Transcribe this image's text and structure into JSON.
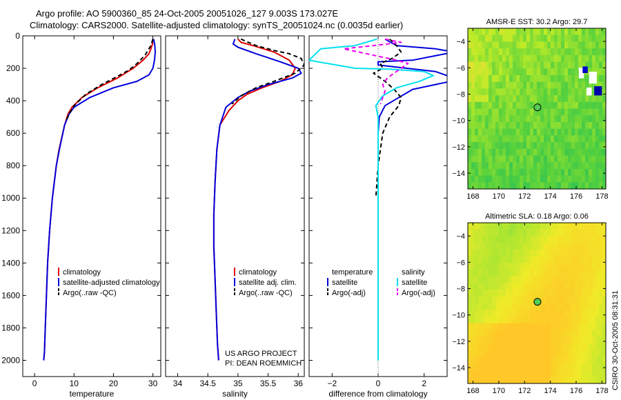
{
  "title_line1": "Argo profile: AO 5900360_85 24-Oct-2005 20051026_127 9.003S 173.027E",
  "title_line2": "Climatology: CARS2000. Satellite-adjusted climatology: synTS_20051024.nc (0.0035d earlier)",
  "side_label": "CSIRO 30-Oct-2005 08:31:31",
  "colors": {
    "clim": "#dd0000",
    "sat": "#0000dd",
    "argo": "#000000",
    "cyan": "#00e0ee",
    "magenta": "#ee00ee"
  },
  "chart_data": [
    {
      "type": "line",
      "name": "temperature-panel",
      "xlabel": "temperature",
      "xlim": [
        -3,
        32
      ],
      "ylim": [
        2100,
        0
      ],
      "xticks": [
        0,
        10,
        20,
        30
      ],
      "yticks": [
        0,
        200,
        400,
        600,
        800,
        1000,
        1200,
        1400,
        1600,
        1800,
        2000
      ],
      "series": [
        {
          "name": "climatology",
          "color": "clim",
          "dash": "solid",
          "x": [
            30.0,
            29.9,
            29.5,
            29.0,
            27.5,
            25.0,
            21.0,
            16.0,
            12.0,
            9.5,
            8.5,
            7.6,
            6.2,
            5.5,
            4.5,
            3.8,
            3.3,
            3.0,
            2.7,
            2.5,
            2.3
          ],
          "y": [
            20,
            50,
            80,
            110,
            150,
            200,
            260,
            320,
            380,
            440,
            480,
            550,
            700,
            800,
            1000,
            1200,
            1400,
            1600,
            1800,
            1950,
            2000
          ]
        },
        {
          "name": "satellite-adjusted climatology",
          "color": "sat",
          "dash": "solid",
          "x": [
            30.2,
            30.5,
            30.6,
            30.4,
            30.0,
            29.0,
            26.0,
            20.0,
            14.0,
            10.0,
            8.8,
            7.6,
            6.3,
            5.5,
            4.5,
            3.8,
            3.3,
            3.0,
            2.7,
            2.5,
            2.3
          ],
          "y": [
            20,
            60,
            100,
            150,
            200,
            240,
            280,
            320,
            380,
            440,
            480,
            550,
            700,
            800,
            1000,
            1200,
            1400,
            1600,
            1800,
            1950,
            2000
          ]
        },
        {
          "name": "Argo(..raw -QC)",
          "color": "argo",
          "dash": "dashed",
          "x": [
            30.0,
            29.5,
            28.0,
            26.0,
            24.0,
            21.0,
            17.0,
            13.0,
            10.0,
            8.8,
            8.0
          ],
          "y": [
            20,
            60,
            120,
            170,
            210,
            250,
            300,
            360,
            430,
            480,
            520
          ]
        }
      ],
      "legend": [
        "climatology",
        "satellite-adjusted climatology",
        "Argo(..raw -QC)"
      ]
    },
    {
      "type": "line",
      "name": "salinity-panel",
      "xlabel": "salinity",
      "xlim": [
        33.8,
        36.1
      ],
      "ylim": [
        2100,
        0
      ],
      "xticks": [
        34,
        34.5,
        35,
        35.5,
        36
      ],
      "xticklabels": [
        "34",
        "34.5",
        "35",
        "35.5",
        "36"
      ],
      "annotation_lines": [
        "US ARGO PROJECT",
        "PI: DEAN ROEMMICH"
      ],
      "series": [
        {
          "name": "climatology",
          "color": "clim",
          "dash": "solid",
          "x": [
            35.0,
            35.05,
            35.25,
            35.6,
            35.85,
            35.95,
            35.9,
            35.7,
            35.4,
            35.15,
            35.0,
            34.85,
            34.7,
            34.65,
            34.62,
            34.6,
            34.6,
            34.62,
            34.64,
            34.66,
            34.68
          ],
          "y": [
            20,
            40,
            60,
            100,
            150,
            200,
            240,
            280,
            320,
            360,
            400,
            460,
            550,
            700,
            900,
            1100,
            1300,
            1500,
            1700,
            1900,
            2000
          ]
        },
        {
          "name": "satellite adj. clim.",
          "color": "sat",
          "dash": "solid",
          "x": [
            34.95,
            34.92,
            35.0,
            35.3,
            35.7,
            36.0,
            36.05,
            35.9,
            35.5,
            35.2,
            35.0,
            34.8,
            34.7,
            34.65,
            34.62,
            34.6,
            34.6,
            34.62,
            34.64,
            34.66,
            34.68
          ],
          "y": [
            20,
            50,
            70,
            110,
            160,
            200,
            230,
            260,
            300,
            340,
            380,
            440,
            550,
            700,
            900,
            1100,
            1300,
            1500,
            1700,
            1900,
            2000
          ]
        },
        {
          "name": "Argo(..raw -QC)",
          "color": "argo",
          "dash": "dashed",
          "x": [
            35.05,
            35.3,
            35.6,
            35.85,
            36.05,
            36.1,
            35.95,
            35.6,
            35.3,
            35.05,
            34.9
          ],
          "y": [
            20,
            60,
            90,
            110,
            140,
            180,
            230,
            280,
            320,
            370,
            420
          ]
        }
      ],
      "legend": [
        "climatology",
        "satellite adj. clim.",
        "Argo(..raw -QC)"
      ]
    },
    {
      "type": "line",
      "name": "difference-panel",
      "xlabel": "difference from climatology",
      "xlim": [
        -3,
        3
      ],
      "ylim": [
        2100,
        0
      ],
      "xticks": [
        -2,
        0,
        2
      ],
      "xticklabels": [
        "−2",
        "0",
        "2"
      ],
      "legend_headers": [
        "temperature",
        "salinity"
      ],
      "series": [
        {
          "name": "temperature satellite",
          "color": "sat",
          "dash": "solid",
          "x": [
            0.3,
            0.8,
            2.5,
            3.3,
            1.5,
            0.0,
            0.0,
            2.5,
            3.5,
            1.5,
            0.3,
            0.05,
            0.0,
            0.0,
            0.0,
            0.0,
            0.0,
            0.0,
            0.0,
            0.0
          ],
          "y": [
            20,
            60,
            80,
            100,
            150,
            160,
            180,
            220,
            270,
            330,
            430,
            500,
            600,
            800,
            1000,
            1200,
            1400,
            1600,
            1800,
            1900
          ]
        },
        {
          "name": "temperature Argo(-adj)",
          "color": "argo",
          "dash": "dashed",
          "x": [
            0.5,
            0.8,
            1.0,
            0.6,
            0.1,
            0.2,
            -0.2,
            0.3,
            0.7,
            1.0,
            0.9,
            0.5,
            0.2,
            0.0,
            -0.1
          ],
          "y": [
            20,
            60,
            100,
            140,
            170,
            200,
            230,
            280,
            330,
            380,
            430,
            500,
            600,
            800,
            1000
          ]
        },
        {
          "name": "salinity satellite",
          "color": "cyan",
          "dash": "solid",
          "x": [
            -0.05,
            -1.0,
            -2.5,
            -3.0,
            -1.0,
            0.5,
            2.0,
            2.4,
            1.8,
            0.8,
            0.2,
            -0.1,
            0.0,
            0.0,
            0.0,
            0.0,
            0.0,
            0.0,
            0.0
          ],
          "y": [
            20,
            60,
            80,
            150,
            200,
            205,
            220,
            245,
            280,
            320,
            370,
            430,
            500,
            700,
            1000,
            1200,
            1500,
            1800,
            2000
          ]
        },
        {
          "name": "salinity Argo(-adj)",
          "color": "magenta",
          "dash": "dashed",
          "x": [
            0.3,
            1.0,
            -0.2,
            -1.5,
            -0.5,
            0.8,
            1.3,
            1.0,
            0.4,
            0.2,
            0.3,
            0.2,
            0.1
          ],
          "y": [
            20,
            40,
            60,
            80,
            110,
            150,
            170,
            200,
            260,
            300,
            340,
            380,
            420
          ]
        }
      ],
      "legend": [
        {
          "label": "satellite",
          "group": "temperature"
        },
        {
          "label": "Argo(-adj)",
          "group": "temperature"
        },
        {
          "label": "satellite",
          "group": "salinity"
        },
        {
          "label": "Argo(-adj)",
          "group": "salinity"
        }
      ]
    },
    {
      "type": "heatmap",
      "name": "amsr-sst-map",
      "title": "AMSR-E SST: 30.2 Argo: 29.7",
      "xlim": [
        167.6,
        178.3
      ],
      "ylim": [
        -15.2,
        -3.0
      ],
      "xticks": [
        168,
        170,
        172,
        174,
        176,
        178
      ],
      "yticks": [
        -4,
        -6,
        -8,
        -10,
        -12,
        -14
      ],
      "argo_position": [
        173.0,
        -9.0
      ],
      "palette": "yellow-green",
      "grid_rows": 24,
      "grid_cols": 40
    },
    {
      "type": "heatmap",
      "name": "altimetric-sla-map",
      "title": "Altimetric SLA: 0.18 Argo: 0.06",
      "xlim": [
        167.6,
        178.3
      ],
      "ylim": [
        -15.2,
        -3.0
      ],
      "xticks": [
        168,
        170,
        172,
        174,
        176,
        178
      ],
      "yticks": [
        -4,
        -6,
        -8,
        -10,
        -12,
        -14
      ],
      "argo_position": [
        173.0,
        -9.0
      ],
      "palette": "orange-yellow-green",
      "grid_rows": 24,
      "grid_cols": 40
    }
  ]
}
